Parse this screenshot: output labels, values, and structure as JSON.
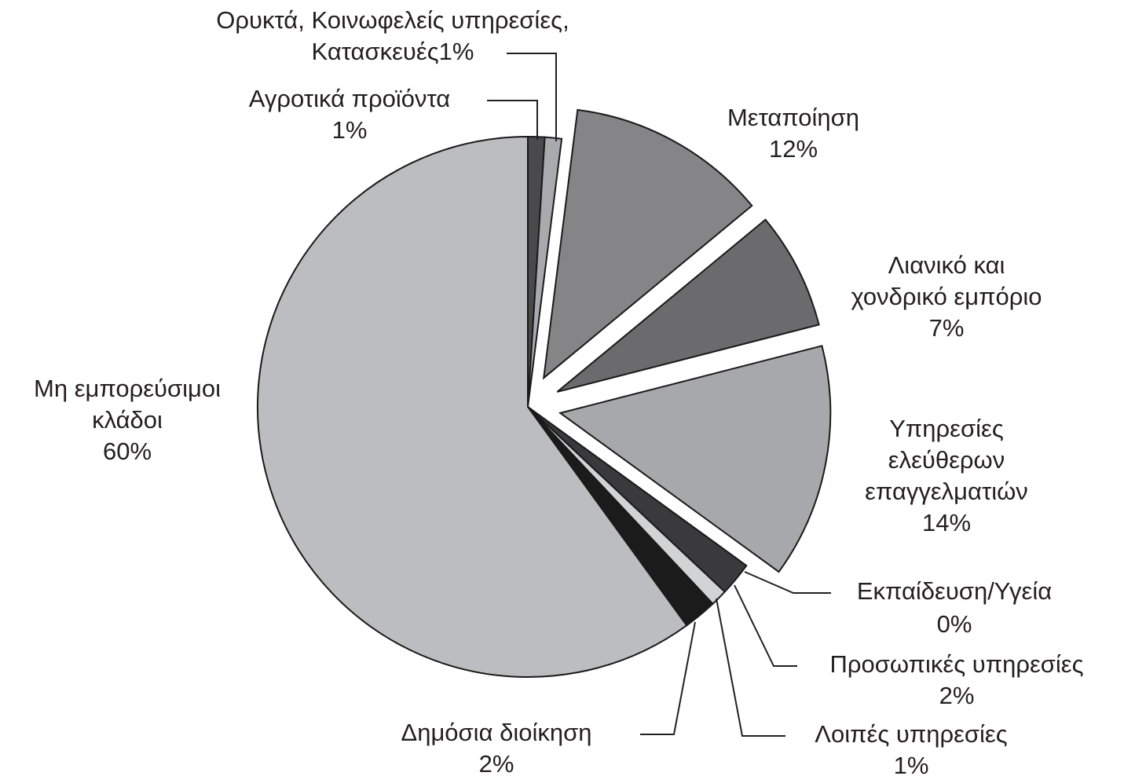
{
  "chart_data": {
    "type": "pie",
    "categories": [
      [
        "Αγροτικά προϊόντα"
      ],
      [
        "Ορυκτά, Κοινωφελείς υπηρεσίες,",
        "Κατασκευές"
      ],
      [
        "Μεταποίηση"
      ],
      [
        "Λιανικό και",
        "χονδρικό εμπόριο"
      ],
      [
        "Υπηρεσίες",
        "ελεύθερων",
        "επαγγελματιών"
      ],
      [
        "Εκπαίδευση/Υγεία"
      ],
      [
        "Προσωπικές υπηρεσίες"
      ],
      [
        "Λοιπές υπηρεσίες"
      ],
      [
        "Δημόσια διοίκηση"
      ],
      [
        "Μη εμπορεύσιμοι",
        "κλάδοι"
      ]
    ],
    "values": [
      1,
      1,
      12,
      7,
      14,
      0,
      2,
      1,
      2,
      60
    ],
    "value_labels": [
      "1%",
      "1%",
      "12%",
      "7%",
      "14%",
      "0%",
      "2%",
      "1%",
      "2%",
      "60%"
    ],
    "colors": [
      "#4a4a4c",
      "#a9aaad",
      "#858587",
      "#6b6b6d",
      "#a7a8ab",
      "#c9cacc",
      "#3a3a3c",
      "#d2d3d5",
      "#1b1b1c",
      "#bcbdc1"
    ],
    "explode": [
      false,
      false,
      true,
      true,
      true,
      false,
      false,
      false,
      false,
      false
    ]
  }
}
